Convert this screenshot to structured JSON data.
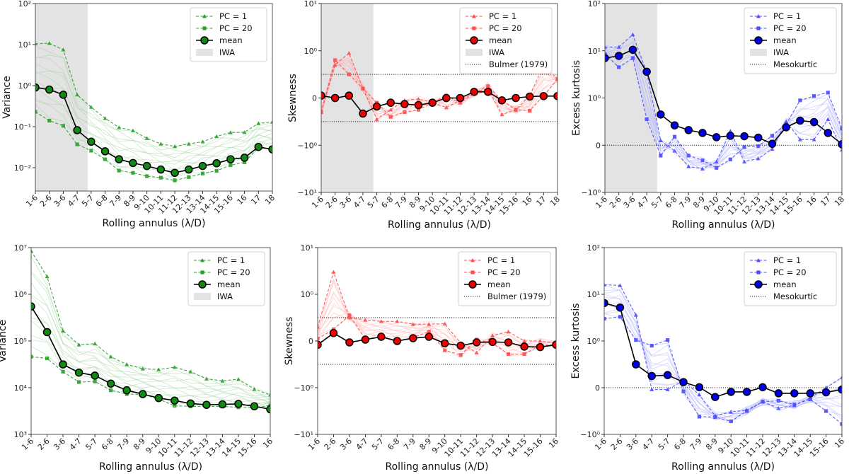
{
  "chart_data": [
    {
      "id": "p1",
      "type": "line",
      "scale": "log",
      "ylabel": "Variance",
      "xlabel": "Rolling annulus (λ/D)",
      "ylim": [
        0.0027,
        100
      ],
      "yticks": [
        {
          "v": 0.01,
          "t": "10⁻²"
        },
        {
          "v": 0.1,
          "t": "10⁻¹"
        },
        {
          "v": 1,
          "t": "10⁰"
        },
        {
          "v": 10,
          "t": "10¹"
        },
        {
          "v": 100,
          "t": "10²"
        }
      ],
      "categories": [
        "1-6",
        "2-6",
        "3-6",
        "4-7",
        "5-7",
        "6-8",
        "7-9",
        "8-9",
        "9-10",
        "10-11",
        "11-12",
        "12-13",
        "13-14",
        "14-15",
        "15-16",
        "16",
        "17",
        "18"
      ],
      "iwa_end": 3.75,
      "refs": [],
      "color": "#2ca02c",
      "light": "#9fd49f",
      "mean_fill": "#108a10",
      "series": [
        {
          "name": "PC = 1",
          "marker": "triangle",
          "values": [
            10.5,
            10.8,
            7.5,
            0.6,
            0.3,
            0.16,
            0.095,
            0.08,
            0.052,
            0.038,
            0.033,
            0.038,
            0.043,
            0.058,
            0.072,
            0.073,
            0.12,
            0.13
          ]
        },
        {
          "name": "PC = 20",
          "marker": "square",
          "values": [
            0.23,
            0.14,
            0.105,
            0.037,
            0.026,
            0.016,
            0.0085,
            0.0075,
            0.0062,
            0.0057,
            0.0049,
            0.0059,
            0.0072,
            0.0084,
            0.0115,
            0.0135,
            0.031,
            0.028
          ]
        },
        {
          "name": "mean",
          "marker": "circle",
          "values": [
            0.9,
            0.8,
            0.6,
            0.082,
            0.043,
            0.025,
            0.016,
            0.013,
            0.011,
            0.009,
            0.0075,
            0.009,
            0.011,
            0.0128,
            0.016,
            0.0175,
            0.032,
            0.028
          ]
        }
      ],
      "legend": [
        "PC = 1",
        "PC = 20",
        "mean",
        "IWA"
      ],
      "legend_position": "top-right"
    },
    {
      "id": "p2",
      "type": "line",
      "scale": "symlog",
      "ylabel": "Skewness",
      "xlabel": "Rolling annulus (λ/D)",
      "ylim": [
        -10,
        10
      ],
      "yticks": [
        {
          "v": -10,
          "t": "−10¹"
        },
        {
          "v": -1,
          "t": "−10⁰"
        },
        {
          "v": 0,
          "t": "0"
        },
        {
          "v": 1,
          "t": "10⁰"
        },
        {
          "v": 10,
          "t": "10¹"
        }
      ],
      "categories": [
        "1-6",
        "2-6",
        "3-6",
        "4-7",
        "5-7",
        "6-8",
        "7-9",
        "8-9",
        "9-10",
        "10-11",
        "11-12",
        "12-13",
        "13-14",
        "14-15",
        "15-16",
        "16",
        "17",
        "18"
      ],
      "iwa_end": 3.75,
      "refs": [
        0.5,
        -0.5
      ],
      "color": "#ff4d4d",
      "light": "#ffb3b3",
      "mean_fill": "#ee0000",
      "series": [
        {
          "name": "PC = 1",
          "marker": "triangle",
          "values": [
            -0.3,
            0.7,
            0.95,
            0.2,
            -0.45,
            -0.25,
            -0.05,
            -0.02,
            -0.1,
            -0.2,
            -0.05,
            0.1,
            0.2,
            -0.35,
            -0.25,
            0.05,
            0.7,
            0.4
          ]
        },
        {
          "name": "PC = 20",
          "marker": "square",
          "values": [
            -0.3,
            0.8,
            0.5,
            0.2,
            -0.1,
            -0.4,
            -0.3,
            -0.25,
            -0.1,
            0.05,
            -0.1,
            0.1,
            0.25,
            -0.05,
            -0.25,
            -0.27,
            0.05,
            0.4
          ]
        },
        {
          "name": "mean",
          "marker": "circle",
          "values": [
            0.05,
            0,
            0.05,
            -0.33,
            -0.18,
            -0.1,
            -0.13,
            -0.15,
            -0.1,
            0,
            0,
            0.13,
            0.13,
            -0.05,
            0,
            0.03,
            0.04,
            0.04
          ]
        }
      ],
      "legend": [
        "PC = 1",
        "PC = 20",
        "mean",
        "IWA",
        "Bulmer (1979)"
      ],
      "legend_position": "top-right"
    },
    {
      "id": "p3",
      "type": "line",
      "scale": "symlog",
      "ylabel": "Excess kurtosis",
      "xlabel": "Rolling annulus (λ/D)",
      "ylim": [
        -1,
        100
      ],
      "yticks": [
        {
          "v": -1,
          "t": "−10⁰"
        },
        {
          "v": 0,
          "t": "0"
        },
        {
          "v": 1,
          "t": "10⁰"
        },
        {
          "v": 10,
          "t": "10¹"
        },
        {
          "v": 100,
          "t": "10²"
        }
      ],
      "categories": [
        "1-6",
        "2-6",
        "3-6",
        "4-7",
        "5-7",
        "6-8",
        "7-9",
        "8-9",
        "9-10",
        "10-11",
        "11-12",
        "12-13",
        "13-14",
        "14-15",
        "15-16",
        "16",
        "17",
        "18"
      ],
      "iwa_end": 3.75,
      "refs": [
        0
      ],
      "color": "#4d4dff",
      "light": "#b3b3ff",
      "mean_fill": "#0000ee",
      "series": [
        {
          "name": "PC = 1",
          "marker": "triangle",
          "values": [
            12,
            12,
            22,
            3.5,
            0.1,
            -0.12,
            -0.45,
            -0.5,
            -0.35,
            0.3,
            -0.35,
            -0.28,
            -0.08,
            0.5,
            0.12,
            0.12,
            0.55,
            -0.1
          ]
        },
        {
          "name": "PC = 20",
          "marker": "square",
          "values": [
            8.5,
            4.5,
            7,
            0.55,
            -0.22,
            0.18,
            -0.22,
            -0.32,
            -0.48,
            -0.3,
            -0.04,
            -0.02,
            0.2,
            0.45,
            0.95,
            1.1,
            1.3,
            0.35
          ]
        },
        {
          "name": "mean",
          "marker": "circle",
          "values": [
            7,
            7.8,
            10.5,
            3.6,
            0.65,
            0.42,
            0.32,
            0.26,
            0.17,
            0.2,
            0.19,
            0.16,
            0.03,
            0.38,
            0.52,
            0.49,
            0.26,
            0.02
          ]
        }
      ],
      "legend": [
        "PC = 1",
        "PC = 20",
        "mean",
        "IWA",
        "Mesokurtic"
      ],
      "legend_position": "top-right"
    },
    {
      "id": "p4",
      "type": "line",
      "scale": "log",
      "ylabel": "Variance",
      "xlabel": "Rolling annulus (λ/D)",
      "ylim": [
        1000,
        10000000
      ],
      "yticks": [
        {
          "v": 1000,
          "t": "10³"
        },
        {
          "v": 10000,
          "t": "10⁴"
        },
        {
          "v": 100000,
          "t": "10⁵"
        },
        {
          "v": 1000000,
          "t": "10⁶"
        },
        {
          "v": 10000000,
          "t": "10⁷"
        }
      ],
      "categories": [
        "1-6",
        "2-6",
        "3-6",
        "4-7",
        "5-7",
        "6-8",
        "7-9",
        "8-9",
        "9-10",
        "10-11",
        "11-12",
        "12-13",
        "13-14",
        "14-15",
        "15-16",
        "16"
      ],
      "iwa_end": null,
      "refs": [],
      "color": "#2ca02c",
      "light": "#9fd49f",
      "mean_fill": "#108a10",
      "series": [
        {
          "name": "PC = 1",
          "marker": "triangle",
          "values": [
            8500000,
            2400000,
            165000,
            83000,
            88000,
            46000,
            31500,
            25500,
            24500,
            27500,
            22000,
            15500,
            14000,
            15200,
            9300,
            7000
          ]
        },
        {
          "name": "PC = 20",
          "marker": "square",
          "values": [
            46000,
            42500,
            22000,
            13200,
            13600,
            8800,
            7300,
            7200,
            5700,
            4100,
            4000,
            4000,
            4000,
            3800,
            3700,
            4200
          ]
        },
        {
          "name": "mean",
          "marker": "circle",
          "values": [
            550000,
            155000,
            31500,
            21000,
            18200,
            12200,
            8800,
            7300,
            6000,
            5300,
            4600,
            4300,
            4400,
            4500,
            4000,
            3450
          ]
        }
      ],
      "legend": [
        "PC = 1",
        "PC = 20",
        "mean",
        "IWA"
      ],
      "legend_position": "top-right"
    },
    {
      "id": "p5",
      "type": "line",
      "scale": "symlog",
      "ylabel": "Skewness",
      "xlabel": "Rolling annulus (λ/D)",
      "ylim": [
        -10,
        10
      ],
      "yticks": [
        {
          "v": -10,
          "t": "−10¹"
        },
        {
          "v": -1,
          "t": "−10⁰"
        },
        {
          "v": 0,
          "t": "0"
        },
        {
          "v": 1,
          "t": "10⁰"
        },
        {
          "v": 10,
          "t": "10¹"
        }
      ],
      "categories": [
        "1-6",
        "2-6",
        "3-6",
        "4-7",
        "5-7",
        "6-8",
        "7-9",
        "8-9",
        "9-10",
        "10-11",
        "11-12",
        "12-13",
        "13-14",
        "14-15",
        "15-16",
        "16"
      ],
      "iwa_end": null,
      "refs": [
        0.5,
        -0.5
      ],
      "color": "#ff4d4d",
      "light": "#ffb3b3",
      "mean_fill": "#ee0000",
      "series": [
        {
          "name": "PC = 1",
          "marker": "triangle",
          "values": [
            0.3,
            3.0,
            0.5,
            0.45,
            0.42,
            0.42,
            0.36,
            0.36,
            0.37,
            -0.05,
            -0.25,
            0.12,
            0.2,
            0,
            0,
            -0.05
          ]
        },
        {
          "name": "PC = 20",
          "marker": "square",
          "values": [
            0.05,
            0.25,
            0.55,
            0.05,
            0.08,
            0,
            0.08,
            0.2,
            -0.2,
            -0.3,
            0.03,
            -0.05,
            -0.28,
            -0.28,
            -0.1,
            -0.08
          ]
        },
        {
          "name": "mean",
          "marker": "circle",
          "values": [
            -0.08,
            0.17,
            -0.03,
            0.03,
            0.09,
            0,
            0.06,
            0.09,
            -0.05,
            -0.1,
            -0.03,
            -0.02,
            -0.03,
            -0.12,
            -0.13,
            -0.08
          ]
        }
      ],
      "legend": [
        "PC = 1",
        "PC = 20",
        "mean",
        "Bulmer (1979)"
      ],
      "legend_position": "top-right"
    },
    {
      "id": "p6",
      "type": "line",
      "scale": "symlog",
      "ylabel": "Excess kurtosis",
      "xlabel": "Rolling annulus (λ/D)",
      "ylim": [
        -1,
        100
      ],
      "yticks": [
        {
          "v": -1,
          "t": "−10⁰"
        },
        {
          "v": 0,
          "t": "0"
        },
        {
          "v": 1,
          "t": "10⁰"
        },
        {
          "v": 10,
          "t": "10¹"
        },
        {
          "v": 100,
          "t": "10²"
        }
      ],
      "categories": [
        "1-6",
        "2-6",
        "3-6",
        "4-7",
        "5-7",
        "6-8",
        "7-9",
        "8-9",
        "9-10",
        "10-11",
        "11-12",
        "12-13",
        "13-14",
        "14-15",
        "15-16",
        "16"
      ],
      "iwa_end": null,
      "refs": [
        0
      ],
      "color": "#4d4dff",
      "light": "#b3b3ff",
      "mean_fill": "#0000ee",
      "series": [
        {
          "name": "PC = 1",
          "marker": "triangle",
          "values": [
            16,
            15.5,
            3.6,
            -0.04,
            -0.04,
            0.15,
            -0.15,
            -0.6,
            -0.52,
            -0.48,
            -0.3,
            -0.44,
            -0.38,
            -0.22,
            0,
            0.22
          ]
        },
        {
          "name": "PC = 20",
          "marker": "square",
          "values": [
            3,
            3.3,
            1.05,
            0.9,
            1.05,
            -0.08,
            -0.62,
            -0.63,
            -0.72,
            -0.5,
            -0.3,
            -0.28,
            -0.36,
            -0.25,
            -0.5,
            -0.78
          ]
        },
        {
          "name": "mean",
          "marker": "circle",
          "values": [
            6.5,
            5.2,
            0.5,
            0.25,
            0.27,
            0.12,
            0.01,
            -0.2,
            -0.09,
            -0.09,
            0.01,
            -0.12,
            -0.12,
            -0.12,
            -0.1,
            -0.04
          ]
        }
      ],
      "legend": [
        "PC = 1",
        "PC = 20",
        "mean",
        "Mesokurtic"
      ],
      "legend_position": "top-right"
    }
  ]
}
